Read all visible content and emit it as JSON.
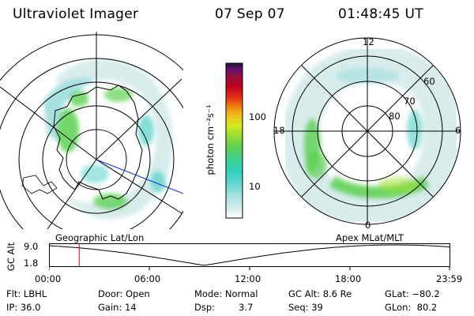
{
  "header": {
    "instrument": "Ultraviolet Imager",
    "date": "07 Sep 07",
    "time": "01:48:45 UT"
  },
  "left_panel": {
    "caption": "Geographic Lat/Lon"
  },
  "right_panel": {
    "caption": "Apex MLat/MLT",
    "mlt_labels": [
      "12",
      "18",
      "6",
      "0"
    ],
    "mlat_labels": [
      "60",
      "70",
      "80"
    ]
  },
  "colorbar": {
    "unit_label": "photon cm⁻²s⁻¹",
    "ticks": [
      "100",
      "10"
    ],
    "colors": [
      "#ffffff",
      "#d8ecec",
      "#a8e0e0",
      "#66d6d0",
      "#30cfc0",
      "#40d090",
      "#5cd050",
      "#a0de30",
      "#d8e820",
      "#f0c020",
      "#f08010",
      "#e03018",
      "#c00020",
      "#901040",
      "#601070",
      "#201030"
    ]
  },
  "altitude_plot": {
    "y_label": "GC Alt",
    "y_max_label": "9.0",
    "y_min_label": "1.8",
    "x_ticks": [
      "00:00",
      "06:00",
      "12:00",
      "18:00",
      "23:59"
    ],
    "marker_time_hours": 1.81
  },
  "info": {
    "filter": "Flt: LBHL",
    "door": "Door: Open",
    "mode": "Mode: Normal",
    "gc_alt": "GC Alt: 8.6 Re",
    "glat": "GLat: −80.2",
    "ip": "IP: 36.0",
    "gain": "Gain: 14",
    "dsp_label": "Dsp:",
    "dsp_value": "3.7",
    "seq": "Seq: 39",
    "glon": "GLon:  80.2"
  }
}
